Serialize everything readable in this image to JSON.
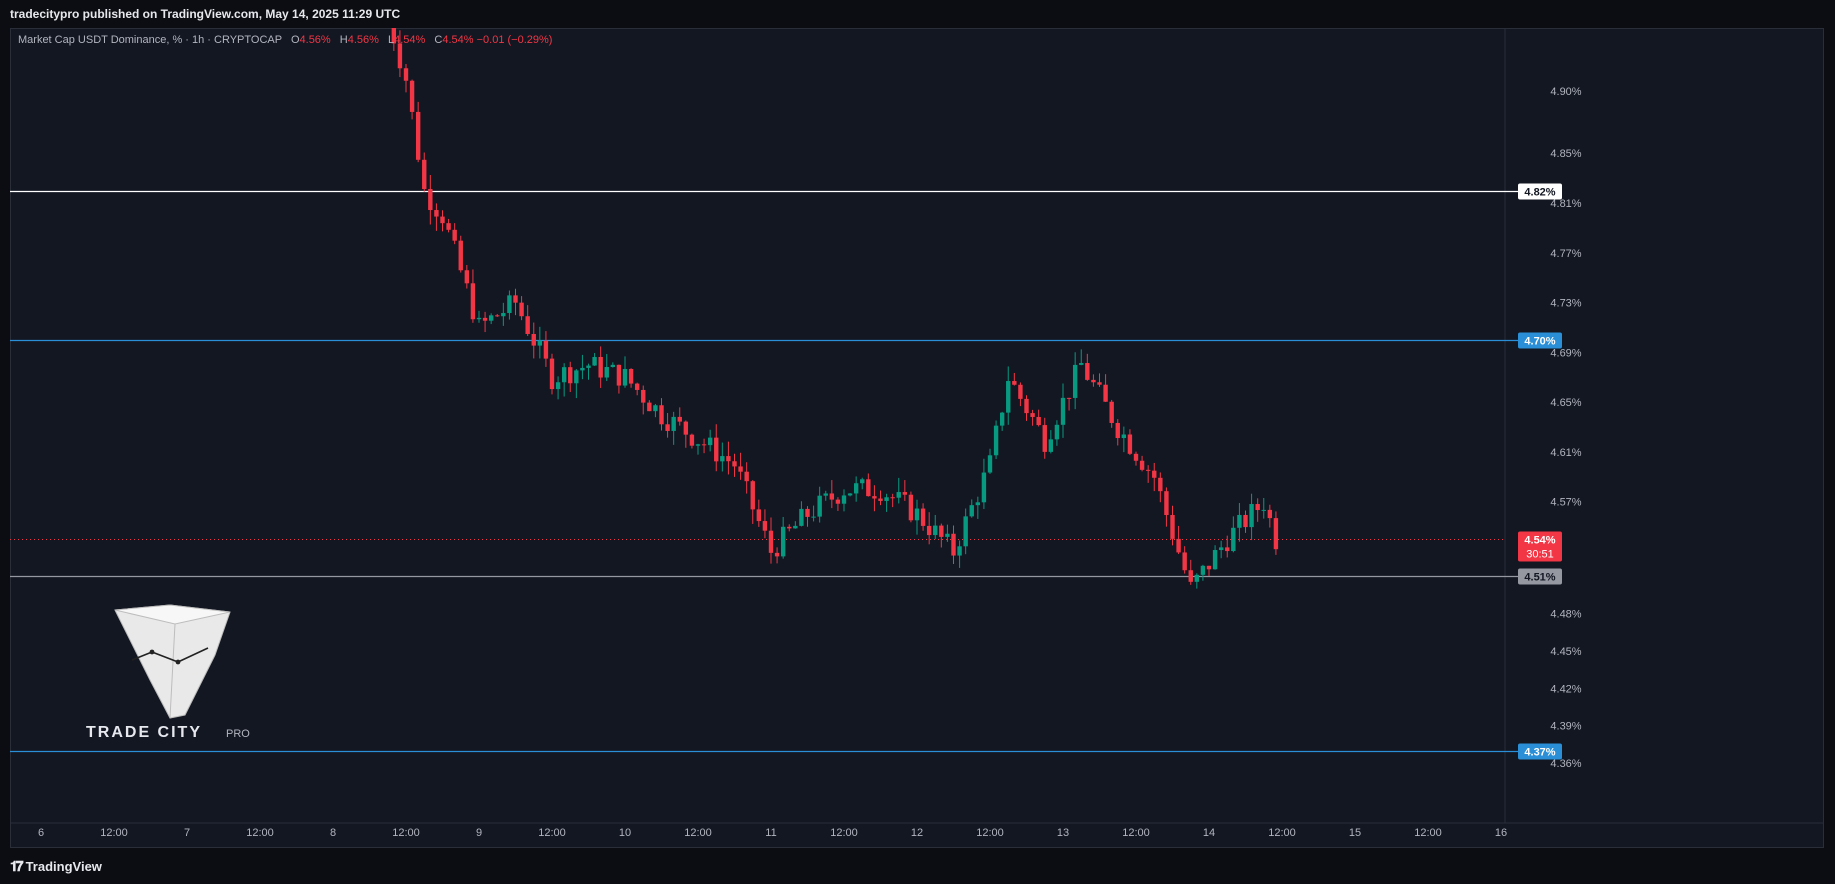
{
  "header": {
    "publisher_line": "tradecitypro published on TradingView.com, May 14, 2025 11:29 UTC"
  },
  "legend": {
    "symbol": "Market Cap USDT Dominance, % · 1h · CRYPTOCAP",
    "o_label": "O",
    "o_value": "4.56%",
    "h_label": "H",
    "h_value": "4.56%",
    "l_label": "L",
    "l_value": "4.54%",
    "c_label": "C",
    "c_value": "4.54%",
    "change": "−0.01 (−0.29%)"
  },
  "footer": {
    "brand": "TradingView",
    "icon": "tradingview-logo-icon"
  },
  "watermark": {
    "name": "TRADE CITY",
    "suffix": "PRO",
    "icon": "trade-city-funnel-logo"
  },
  "colors": {
    "background": "#131722",
    "up": "#089981",
    "down": "#f23645",
    "white_line": "#ffffff",
    "blue_line": "#2a8fd6",
    "gray_line": "#9598a1"
  },
  "chart_data": {
    "type": "candlestick",
    "title": "",
    "x_labels": [
      "6",
      "12:00",
      "7",
      "12:00",
      "8",
      "12:00",
      "9",
      "12:00",
      "10",
      "12:00",
      "11",
      "12:00",
      "12",
      "12:00",
      "13",
      "12:00",
      "14",
      "12:00",
      "15",
      "12:00",
      "16"
    ],
    "y_ticks": [
      "4.90%",
      "4.85%",
      "4.81%",
      "4.77%",
      "4.73%",
      "4.69%",
      "4.65%",
      "4.61%",
      "4.57%",
      "4.48%",
      "4.45%",
      "4.42%",
      "4.39%",
      "4.36%"
    ],
    "ylim": [
      4.352,
      4.953
    ],
    "horizontal_levels": [
      {
        "value": 4.82,
        "label": "4.82%",
        "color": "white"
      },
      {
        "value": 4.7,
        "label": "4.70%",
        "color": "blue"
      },
      {
        "value": 4.51,
        "label": "4.51%",
        "color": "gray"
      },
      {
        "value": 4.37,
        "label": "4.37%",
        "color": "blue"
      }
    ],
    "last_price": {
      "value": 4.54,
      "label": "4.54%",
      "countdown": "30:51"
    },
    "keypoints_date_hour_value": [
      [
        "May 8 09:00",
        4.96
      ],
      [
        "May 8 12:00",
        4.91
      ],
      [
        "May 8 15:00",
        4.82
      ],
      [
        "May 8 18:00",
        4.8
      ],
      [
        "May 9 00:00",
        4.71
      ],
      [
        "May 9 06:00",
        4.73
      ],
      [
        "May 9 12:00",
        4.67
      ],
      [
        "May 9 18:00",
        4.68
      ],
      [
        "May 10 00:00",
        4.67
      ],
      [
        "May 10 06:00",
        4.64
      ],
      [
        "May 10 12:00",
        4.62
      ],
      [
        "May 10 18:00",
        4.6
      ],
      [
        "May 11 00:00",
        4.53
      ],
      [
        "May 11 06:00",
        4.56
      ],
      [
        "May 11 12:00",
        4.58
      ],
      [
        "May 11 18:00",
        4.58
      ],
      [
        "May 12 00:00",
        4.56
      ],
      [
        "May 12 06:00",
        4.53
      ],
      [
        "May 12 12:00",
        4.6
      ],
      [
        "May 12 15:00",
        4.67
      ],
      [
        "May 12 21:00",
        4.62
      ],
      [
        "May 13 03:00",
        4.68
      ],
      [
        "May 13 09:00",
        4.63
      ],
      [
        "May 13 15:00",
        4.59
      ],
      [
        "May 13 21:00",
        4.5
      ],
      [
        "May 14 03:00",
        4.54
      ],
      [
        "May 14 09:00",
        4.57
      ],
      [
        "May 14 11:00",
        4.54
      ]
    ]
  }
}
